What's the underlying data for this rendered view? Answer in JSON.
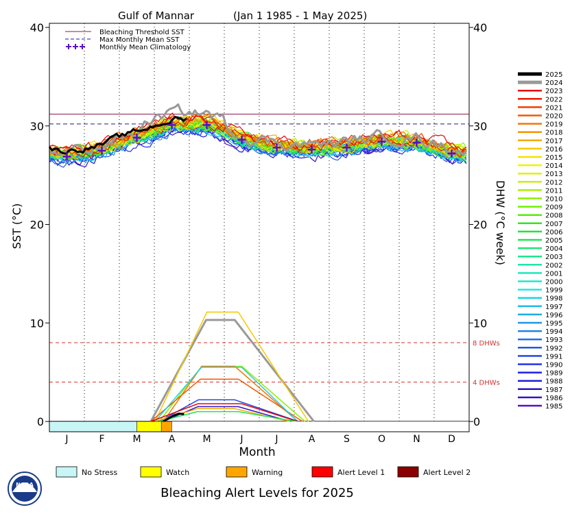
{
  "chart_data": {
    "type": "line",
    "title": "Gulf of Mannar",
    "date_range": "(Jan 1 1985 - 1 May 2025)",
    "xlabel": "Month",
    "ylabel_left": "SST (°C)",
    "ylabel_right": "DHW (°C week)",
    "ylim": [
      0,
      40
    ],
    "yticks": [
      0,
      10,
      20,
      30,
      40
    ],
    "xticks": [
      "J",
      "F",
      "M",
      "A",
      "M",
      "J",
      "J",
      "A",
      "S",
      "O",
      "N",
      "D"
    ],
    "reference_lines": {
      "bleaching_threshold_sst": 31.2,
      "max_monthly_mean_sst": 30.2,
      "dhw_4": 4,
      "dhw_8": 8,
      "dhw_4_label": "4 DHWs",
      "dhw_8_label": "8 DHWs"
    },
    "climatology_legend": [
      {
        "label": "Bleaching Threshold SST",
        "color": "#8b1a4a",
        "style": "solid"
      },
      {
        "label": "Max Monthly Mean SST",
        "color": "#1a1a8b",
        "style": "dashed"
      },
      {
        "label": "Monthly Mean Climatology",
        "color": "#5a10c8",
        "style": "plus"
      }
    ],
    "monthly_mean_climatology": [
      {
        "month": "J",
        "value": 26.9
      },
      {
        "month": "F",
        "value": 27.5
      },
      {
        "month": "M",
        "value": 28.8
      },
      {
        "month": "A",
        "value": 30.1
      },
      {
        "month": "M",
        "value": 30.1
      },
      {
        "month": "J",
        "value": 28.6
      },
      {
        "month": "J",
        "value": 27.8
      },
      {
        "month": "A",
        "value": 27.6
      },
      {
        "month": "S",
        "value": 27.8
      },
      {
        "month": "O",
        "value": 28.4
      },
      {
        "month": "N",
        "value": 28.3
      },
      {
        "month": "D",
        "value": 27.2
      }
    ],
    "series": [
      {
        "name": "2025",
        "color": "#000000",
        "width": 4
      },
      {
        "name": "2024",
        "color": "#999999",
        "width": 4
      },
      {
        "name": "2023",
        "color": "#e8000b",
        "width": 2
      },
      {
        "name": "2022",
        "color": "#e81b00",
        "width": 2
      },
      {
        "name": "2021",
        "color": "#f03c00",
        "width": 2
      },
      {
        "name": "2020",
        "color": "#f05a00",
        "width": 2
      },
      {
        "name": "2019",
        "color": "#f07800",
        "width": 2
      },
      {
        "name": "2018",
        "color": "#f09600",
        "width": 2
      },
      {
        "name": "2017",
        "color": "#f5aa00",
        "width": 2
      },
      {
        "name": "2016",
        "color": "#f5c800",
        "width": 2
      },
      {
        "name": "2015",
        "color": "#f5e100",
        "width": 2
      },
      {
        "name": "2014",
        "color": "#f0f000",
        "width": 2
      },
      {
        "name": "2013",
        "color": "#e1f000",
        "width": 2
      },
      {
        "name": "2012",
        "color": "#c8f000",
        "width": 2
      },
      {
        "name": "2011",
        "color": "#aaf000",
        "width": 2
      },
      {
        "name": "2010",
        "color": "#8cf000",
        "width": 2
      },
      {
        "name": "2009",
        "color": "#6ef000",
        "width": 2
      },
      {
        "name": "2008",
        "color": "#50f000",
        "width": 2
      },
      {
        "name": "2007",
        "color": "#32e61e",
        "width": 2
      },
      {
        "name": "2006",
        "color": "#1ee632",
        "width": 2
      },
      {
        "name": "2005",
        "color": "#1ee650",
        "width": 2
      },
      {
        "name": "2004",
        "color": "#1ee66e",
        "width": 2
      },
      {
        "name": "2003",
        "color": "#1ee68c",
        "width": 2
      },
      {
        "name": "2002",
        "color": "#1ee6aa",
        "width": 2
      },
      {
        "name": "2001",
        "color": "#1ee6be",
        "width": 2
      },
      {
        "name": "2000",
        "color": "#1ee6d2",
        "width": 2
      },
      {
        "name": "1999",
        "color": "#1ee6e6",
        "width": 2
      },
      {
        "name": "1998",
        "color": "#1ed2e6",
        "width": 2
      },
      {
        "name": "1997",
        "color": "#1ebee6",
        "width": 2
      },
      {
        "name": "1996",
        "color": "#1eaae6",
        "width": 2
      },
      {
        "name": "1995",
        "color": "#1e96e6",
        "width": 2
      },
      {
        "name": "1994",
        "color": "#1e82e6",
        "width": 2
      },
      {
        "name": "1993",
        "color": "#1e6ee6",
        "width": 2
      },
      {
        "name": "1992",
        "color": "#1e5ae6",
        "width": 2
      },
      {
        "name": "1991",
        "color": "#1e46e6",
        "width": 2
      },
      {
        "name": "1990",
        "color": "#1e32e6",
        "width": 2
      },
      {
        "name": "1989",
        "color": "#1e1ee6",
        "width": 2
      },
      {
        "name": "1988",
        "color": "#1e1ed2",
        "width": 2
      },
      {
        "name": "1987",
        "color": "#2a14c8",
        "width": 2
      },
      {
        "name": "1986",
        "color": "#3a10c8",
        "width": 2
      },
      {
        "name": "1985",
        "color": "#5010c8",
        "width": 2
      }
    ],
    "dhw_peaks": [
      {
        "year": "2024",
        "peak": 10.3,
        "color": "#999999",
        "width": 4
      },
      {
        "year": "2016",
        "peak": 11.1,
        "color": "#f5c800",
        "width": 2
      },
      {
        "year": "2010",
        "peak": 5.6,
        "color": "#8cf000",
        "width": 2
      },
      {
        "year": "2019",
        "peak": 5.6,
        "color": "#f07800",
        "width": 2
      },
      {
        "year": "2020",
        "peak": 4.3,
        "color": "#f05a00",
        "width": 2
      },
      {
        "year": "1998",
        "peak": 5.5,
        "color": "#1ed2e6",
        "width": 2
      },
      {
        "year": "1991",
        "peak": 2.2,
        "color": "#1e46e6",
        "width": 2
      },
      {
        "year": "1987",
        "peak": 1.5,
        "color": "#2a14c8",
        "width": 2
      },
      {
        "year": "2023",
        "peak": 1.8,
        "color": "#e8000b",
        "width": 2
      },
      {
        "year": "2017",
        "peak": 1.3,
        "color": "#f5aa00",
        "width": 2
      },
      {
        "year": "2005",
        "peak": 1.0,
        "color": "#1ee650",
        "width": 2
      },
      {
        "year": "2025",
        "peak": 0.8,
        "color": "#000000",
        "width": 4
      }
    ],
    "alert_bar": [
      {
        "level": "No Stress",
        "from_month": 0,
        "to_month": 2.5,
        "color": "#c8f5f5"
      },
      {
        "level": "Watch",
        "from_month": 2.5,
        "to_month": 3.2,
        "color": "#ffff00"
      },
      {
        "level": "Warning",
        "from_month": 3.2,
        "to_month": 3.5,
        "color": "#ffa500"
      }
    ],
    "alert_levels_legend": [
      {
        "label": "No Stress",
        "color": "#c8f5f5"
      },
      {
        "label": "Watch",
        "color": "#ffff00"
      },
      {
        "label": "Warning",
        "color": "#ffa500"
      },
      {
        "label": "Alert Level 1",
        "color": "#ff0000"
      },
      {
        "label": "Alert Level 2",
        "color": "#8b0000"
      }
    ],
    "footer_title": "Bleaching Alert Levels for 2025",
    "logo_text": "NOAA"
  }
}
